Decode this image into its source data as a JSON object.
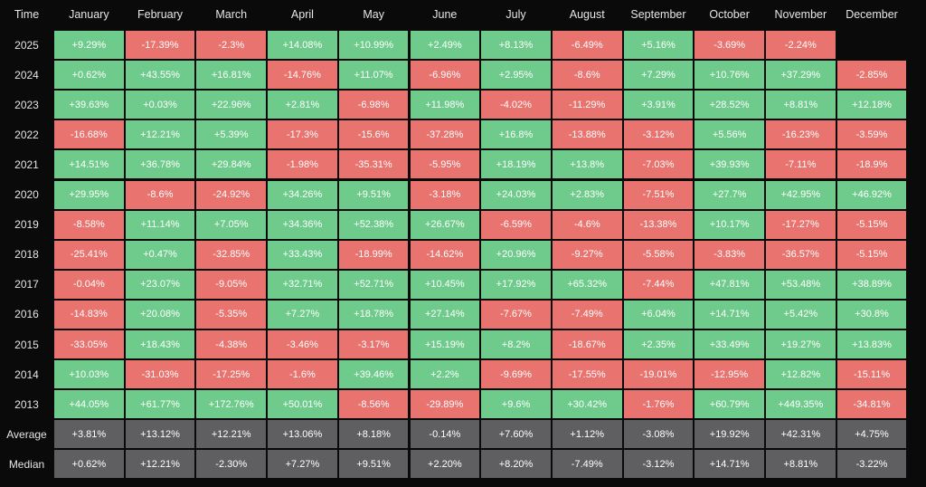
{
  "table": {
    "header": [
      "Time",
      "January",
      "February",
      "March",
      "April",
      "May",
      "June",
      "July",
      "August",
      "September",
      "October",
      "November",
      "December"
    ],
    "rows": [
      [
        "2025",
        "+9.29%",
        "-17.39%",
        "-2.3%",
        "+14.08%",
        "+10.99%",
        "+2.49%",
        "+8.13%",
        "-6.49%",
        "+5.16%",
        "-3.69%",
        "-2.24%"
      ],
      [
        "2024",
        "+0.62%",
        "+43.55%",
        "+16.81%",
        "-14.76%",
        "+11.07%",
        "-6.96%",
        "+2.95%",
        "-8.6%",
        "+7.29%",
        "+10.76%",
        "+37.29%",
        "-2.85%"
      ],
      [
        "2023",
        "+39.63%",
        "+0.03%",
        "+22.96%",
        "+2.81%",
        "-6.98%",
        "+11.98%",
        "-4.02%",
        "-11.29%",
        "+3.91%",
        "+28.52%",
        "+8.81%",
        "+12.18%"
      ],
      [
        "2022",
        "-16.68%",
        "+12.21%",
        "+5.39%",
        "-17.3%",
        "-15.6%",
        "-37.28%",
        "+16.8%",
        "-13.88%",
        "-3.12%",
        "+5.56%",
        "-16.23%",
        "-3.59%"
      ],
      [
        "2021",
        "+14.51%",
        "+36.78%",
        "+29.84%",
        "-1.98%",
        "-35.31%",
        "-5.95%",
        "+18.19%",
        "+13.8%",
        "-7.03%",
        "+39.93%",
        "-7.11%",
        "-18.9%"
      ],
      [
        "2020",
        "+29.95%",
        "-8.6%",
        "-24.92%",
        "+34.26%",
        "+9.51%",
        "-3.18%",
        "+24.03%",
        "+2.83%",
        "-7.51%",
        "+27.7%",
        "+42.95%",
        "+46.92%"
      ],
      [
        "2019",
        "-8.58%",
        "+11.14%",
        "+7.05%",
        "+34.36%",
        "+52.38%",
        "+26.67%",
        "-6.59%",
        "-4.6%",
        "-13.38%",
        "+10.17%",
        "-17.27%",
        "-5.15%"
      ],
      [
        "2018",
        "-25.41%",
        "+0.47%",
        "-32.85%",
        "+33.43%",
        "-18.99%",
        "-14.62%",
        "+20.96%",
        "-9.27%",
        "-5.58%",
        "-3.83%",
        "-36.57%",
        "-5.15%"
      ],
      [
        "2017",
        "-0.04%",
        "+23.07%",
        "-9.05%",
        "+32.71%",
        "+52.71%",
        "+10.45%",
        "+17.92%",
        "+65.32%",
        "-7.44%",
        "+47.81%",
        "+53.48%",
        "+38.89%"
      ],
      [
        "2016",
        "-14.83%",
        "+20.08%",
        "-5.35%",
        "+7.27%",
        "+18.78%",
        "+27.14%",
        "-7.67%",
        "-7.49%",
        "+6.04%",
        "+14.71%",
        "+5.42%",
        "+30.8%"
      ],
      [
        "2015",
        "-33.05%",
        "+18.43%",
        "-4.38%",
        "-3.46%",
        "-3.17%",
        "+15.19%",
        "+8.2%",
        "-18.67%",
        "+2.35%",
        "+33.49%",
        "+19.27%",
        "+13.83%"
      ],
      [
        "2014",
        "+10.03%",
        "-31.03%",
        "-17.25%",
        "-1.6%",
        "+39.46%",
        "+2.2%",
        "-9.69%",
        "-17.55%",
        "-19.01%",
        "-12.95%",
        "+12.82%",
        "-15.11%"
      ],
      [
        "2013",
        "+44.05%",
        "+61.77%",
        "+172.76%",
        "+50.01%",
        "-8.56%",
        "-29.89%",
        "+9.6%",
        "+30.42%",
        "-1.76%",
        "+60.79%",
        "+449.35%",
        "-34.81%"
      ]
    ],
    "summary_rows": [
      [
        "Average",
        "+3.81%",
        "+13.12%",
        "+12.21%",
        "+13.06%",
        "+8.18%",
        "-0.14%",
        "+7.60%",
        "+1.12%",
        "-3.08%",
        "+19.92%",
        "+42.31%",
        "+4.75%"
      ],
      [
        "Median",
        "+0.62%",
        "+12.21%",
        "-2.30%",
        "+7.27%",
        "+9.51%",
        "+2.20%",
        "+8.20%",
        "-7.49%",
        "-3.12%",
        "+14.71%",
        "+8.81%",
        "-3.22%"
      ]
    ]
  }
}
